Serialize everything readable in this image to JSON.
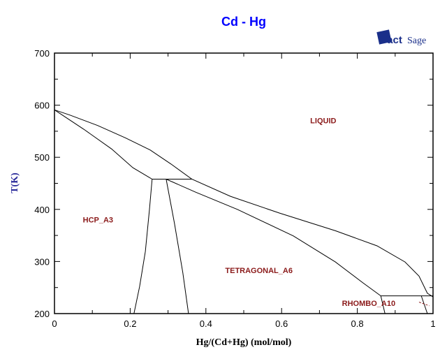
{
  "chart_data": {
    "type": "line",
    "title": "Cd - Hg",
    "xlabel": "Hg/(Cd+Hg) (mol/mol)",
    "ylabel": "T(K)",
    "xlim": [
      0,
      1
    ],
    "ylim": [
      200,
      700
    ],
    "xticks": [
      "0",
      "0.2",
      "0.4",
      "0.6",
      "0.8",
      "1"
    ],
    "yticks": [
      "200",
      "300",
      "400",
      "500",
      "600",
      "700"
    ],
    "grid": false,
    "line_color": "#000000",
    "title_color": "#0000ff",
    "label_color": "#8b1a1a",
    "logo": "FactSage",
    "series": [
      {
        "x": [
          0,
          0.041,
          0.114,
          0.188,
          0.253,
          0.308,
          0.363,
          0.465,
          0.594,
          0.742,
          0.852,
          0.926,
          0.963,
          0.985,
          1
        ],
        "y": [
          591,
          581,
          561,
          537,
          514,
          487,
          458,
          425,
          393,
          359,
          330,
          299,
          272,
          239,
          232
        ]
      },
      {
        "x": [
          0,
          0.077,
          0.151,
          0.207,
          0.258
        ],
        "y": [
          591,
          554,
          516,
          480,
          458
        ]
      },
      {
        "x": [
          0.295,
          0.373,
          0.483,
          0.631,
          0.742,
          0.815,
          0.862
        ],
        "y": [
          458,
          433,
          400,
          349,
          299,
          259,
          234
        ]
      },
      {
        "x": [
          0.258,
          0.363
        ],
        "y": [
          458,
          458
        ]
      },
      {
        "x": [
          0.258,
          0.251,
          0.24,
          0.225,
          0.21
        ],
        "y": [
          458,
          400,
          319,
          252,
          200
        ]
      },
      {
        "x": [
          0.295,
          0.317,
          0.339,
          0.354
        ],
        "y": [
          458,
          373,
          279,
          200
        ]
      },
      {
        "x": [
          0.862,
          1
        ],
        "y": [
          234,
          234
        ]
      },
      {
        "x": [
          0.862,
          0.873
        ],
        "y": [
          234,
          200
        ]
      },
      {
        "x": [
          0.969,
          0.985
        ],
        "y": [
          234,
          200
        ]
      }
    ],
    "annotations": [
      {
        "text": "LIQUID",
        "x": 0.71,
        "y": 565
      },
      {
        "text": "HCP_A3",
        "x": 0.115,
        "y": 375
      },
      {
        "text": "TETRAGONAL_A6",
        "x": 0.54,
        "y": 278
      },
      {
        "text": "RHOMBO_A10",
        "x": 0.83,
        "y": 215
      }
    ]
  }
}
